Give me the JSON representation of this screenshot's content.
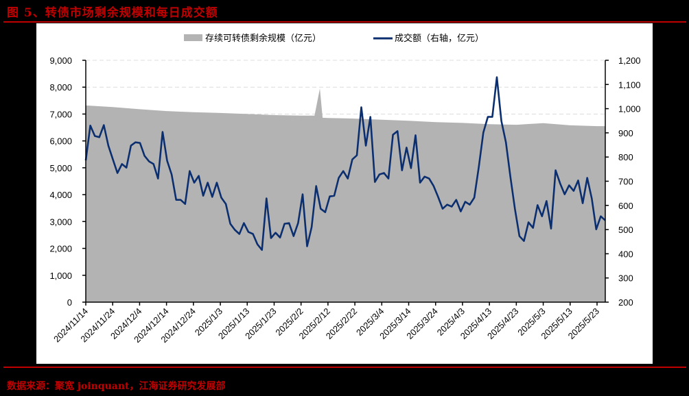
{
  "title": "图 5、转债市场剩余规模和每日成交额",
  "source": "数据来源：聚宽 joinquant，江海证券研究发展部",
  "colors": {
    "accent_red": "#c00000",
    "area_fill": "#b3b3b3",
    "line": "#0b2e6f",
    "background": "#000000",
    "panel": "#ffffff"
  },
  "legend": {
    "area_label": "存续可转债剩余规模（亿元）",
    "line_label": "成交额（右轴，亿元）"
  },
  "chart_data": {
    "type": "area+line",
    "title": "转债市场剩余规模和每日成交额",
    "xlabel": "",
    "ylabel_left": "存续可转债剩余规模（亿元）",
    "ylabel_right": "成交额（亿元）",
    "ylim_left": [
      0,
      9000
    ],
    "ylim_right": [
      200,
      1200
    ],
    "yticks_left": [
      "0",
      "1,000",
      "2,000",
      "3,000",
      "4,000",
      "5,000",
      "6,000",
      "7,000",
      "8,000",
      "9,000"
    ],
    "yticks_right": [
      "200",
      "300",
      "400",
      "500",
      "600",
      "700",
      "800",
      "900",
      "1,000",
      "1,100",
      "1,200"
    ],
    "x_tick_labels": [
      "2024/11/14",
      "2024/11/24",
      "2024/12/4",
      "2024/12/14",
      "2024/12/24",
      "2025/1/3",
      "2025/1/13",
      "2025/1/23",
      "2025/2/2",
      "2025/2/12",
      "2025/2/22",
      "2025/3/4",
      "2025/3/14",
      "2025/3/24",
      "2025/4/3",
      "2025/4/13",
      "2025/4/23",
      "2025/5/3",
      "2025/5/13",
      "2025/5/23"
    ],
    "grid": "dashed horizontal, light gray",
    "legend_position": "top",
    "series": [
      {
        "name": "存续可转债剩余规模（亿元）",
        "axis": "left",
        "kind": "area",
        "points": [
          [
            "2024/11/14",
            7320
          ],
          [
            "2024/11/24",
            7260
          ],
          [
            "2024/12/4",
            7180
          ],
          [
            "2024/12/14",
            7110
          ],
          [
            "2024/12/24",
            7070
          ],
          [
            "2025/1/3",
            7040
          ],
          [
            "2025/1/13",
            7000
          ],
          [
            "2025/1/23",
            6960
          ],
          [
            "2025/2/2",
            6940
          ],
          [
            "2025/2/7",
            6940
          ],
          [
            "2025/2/9",
            7950
          ],
          [
            "2025/2/10",
            6860
          ],
          [
            "2025/2/12",
            6850
          ],
          [
            "2025/2/22",
            6830
          ],
          [
            "2025/3/4",
            6790
          ],
          [
            "2025/3/14",
            6750
          ],
          [
            "2025/3/24",
            6700
          ],
          [
            "2025/4/3",
            6670
          ],
          [
            "2025/4/13",
            6620
          ],
          [
            "2025/4/23",
            6600
          ],
          [
            "2025/5/3",
            6660
          ],
          [
            "2025/5/13",
            6580
          ],
          [
            "2025/5/23",
            6550
          ],
          [
            "2025/5/27",
            6550
          ]
        ]
      },
      {
        "name": "成交额（右轴，亿元）",
        "axis": "right",
        "kind": "line",
        "approximate_values": [
          786,
          930,
          887,
          882,
          932,
          847,
          790,
          734,
          771,
          756,
          847,
          861,
          858,
          805,
          782,
          771,
          711,
          904,
          785,
          728,
          623,
          623,
          606,
          742,
          694,
          722,
          640,
          694,
          635,
          694,
          632,
          606,
          524,
          499,
          482,
          527,
          490,
          482,
          439,
          416,
          629,
          465,
          487,
          467,
          524,
          527,
          473,
          527,
          646,
          431,
          510,
          680,
          586,
          572,
          637,
          640,
          714,
          742,
          711,
          790,
          807,
          1006,
          847,
          966,
          697,
          728,
          734,
          711,
          892,
          907,
          745,
          839,
          754,
          890,
          694,
          719,
          711,
          680,
          635,
          586,
          603,
          595,
          623,
          575,
          615,
          603,
          632,
          759,
          901,
          966,
          966,
          1130,
          949,
          861,
          717,
          586,
          473,
          453,
          530,
          507,
          601,
          555,
          618,
          504,
          745,
          691,
          646,
          683,
          660,
          703,
          609,
          714,
          629,
          501,
          555,
          538
        ],
        "start": "2024/11/14",
        "end": "2025/5/27",
        "peak": {
          "date": "2025/4/8",
          "value": 1130
        },
        "trough": {
          "date": "2025/1/13",
          "value": 416
        }
      }
    ]
  }
}
